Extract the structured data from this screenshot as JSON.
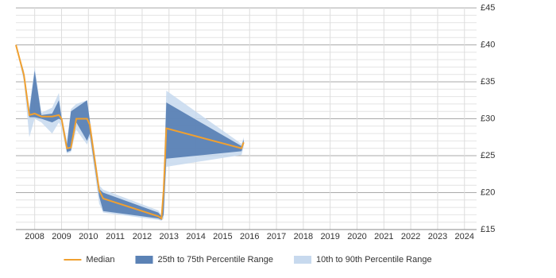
{
  "chart_data": {
    "type": "range-line",
    "x": [
      2007.3,
      2007.6,
      2007.8,
      2008.0,
      2008.25,
      2008.65,
      2008.9,
      2009.0,
      2009.2,
      2009.35,
      2009.55,
      2009.95,
      2010.05,
      2010.4,
      2010.55,
      2012.6,
      2012.72,
      2012.8,
      2012.9,
      2015.7,
      2015.78
    ],
    "series": [
      {
        "name": "Median",
        "color": "#f0a030",
        "values": [
          40,
          35.9,
          30.5,
          30.7,
          30.3,
          30.3,
          30.5,
          30,
          26,
          26.1,
          30,
          30,
          29.2,
          20.3,
          19.2,
          16.8,
          16.5,
          20.3,
          28.7,
          26,
          26.8
        ]
      },
      {
        "name": "25th to 75th Percentile Range",
        "color": "#5b82b5",
        "lower": [
          40,
          35.5,
          30.2,
          30.2,
          30,
          29.5,
          30,
          29.8,
          25.5,
          25.7,
          29.5,
          27,
          28,
          19.5,
          17.5,
          16.5,
          16.3,
          17,
          24.6,
          25.6,
          26.5
        ],
        "upper": [
          40,
          36,
          31,
          36.5,
          30.5,
          30.7,
          32.5,
          30.2,
          26.5,
          31,
          31.5,
          32.5,
          29.8,
          20.5,
          20,
          17.3,
          16.8,
          21,
          32.2,
          26.3,
          27.2
        ]
      },
      {
        "name": "10th to 90th Percentile Range",
        "color": "#c7d9ee",
        "lower": [
          40,
          35,
          27.5,
          30,
          29.5,
          28,
          29.5,
          28.8,
          25.3,
          25.5,
          28.5,
          26.5,
          27.5,
          18.5,
          17.3,
          16.3,
          16.2,
          16.5,
          23.5,
          25.1,
          26.2
        ],
        "upper": [
          40,
          36.5,
          31.5,
          37,
          30.8,
          31.5,
          33.5,
          30.5,
          27,
          31.3,
          32,
          32.5,
          30,
          21,
          20.4,
          17.6,
          17,
          22,
          33.8,
          26.6,
          27.5
        ]
      }
    ],
    "xlim": [
      2007.3,
      2024.45
    ],
    "xticks": [
      2008,
      2009,
      2010,
      2011,
      2012,
      2013,
      2014,
      2015,
      2016,
      2017,
      2018,
      2019,
      2020,
      2021,
      2022,
      2023,
      2024
    ],
    "ylim": [
      15,
      45
    ],
    "yticks": [
      {
        "value": 15,
        "label": "£15"
      },
      {
        "value": 20,
        "label": "£20"
      },
      {
        "value": 25,
        "label": "£25"
      },
      {
        "value": 30,
        "label": "£30"
      },
      {
        "value": 35,
        "label": "£35"
      },
      {
        "value": 40,
        "label": "£40"
      },
      {
        "value": 45,
        "label": "£45"
      }
    ],
    "grid": true,
    "legend": "bottom"
  }
}
